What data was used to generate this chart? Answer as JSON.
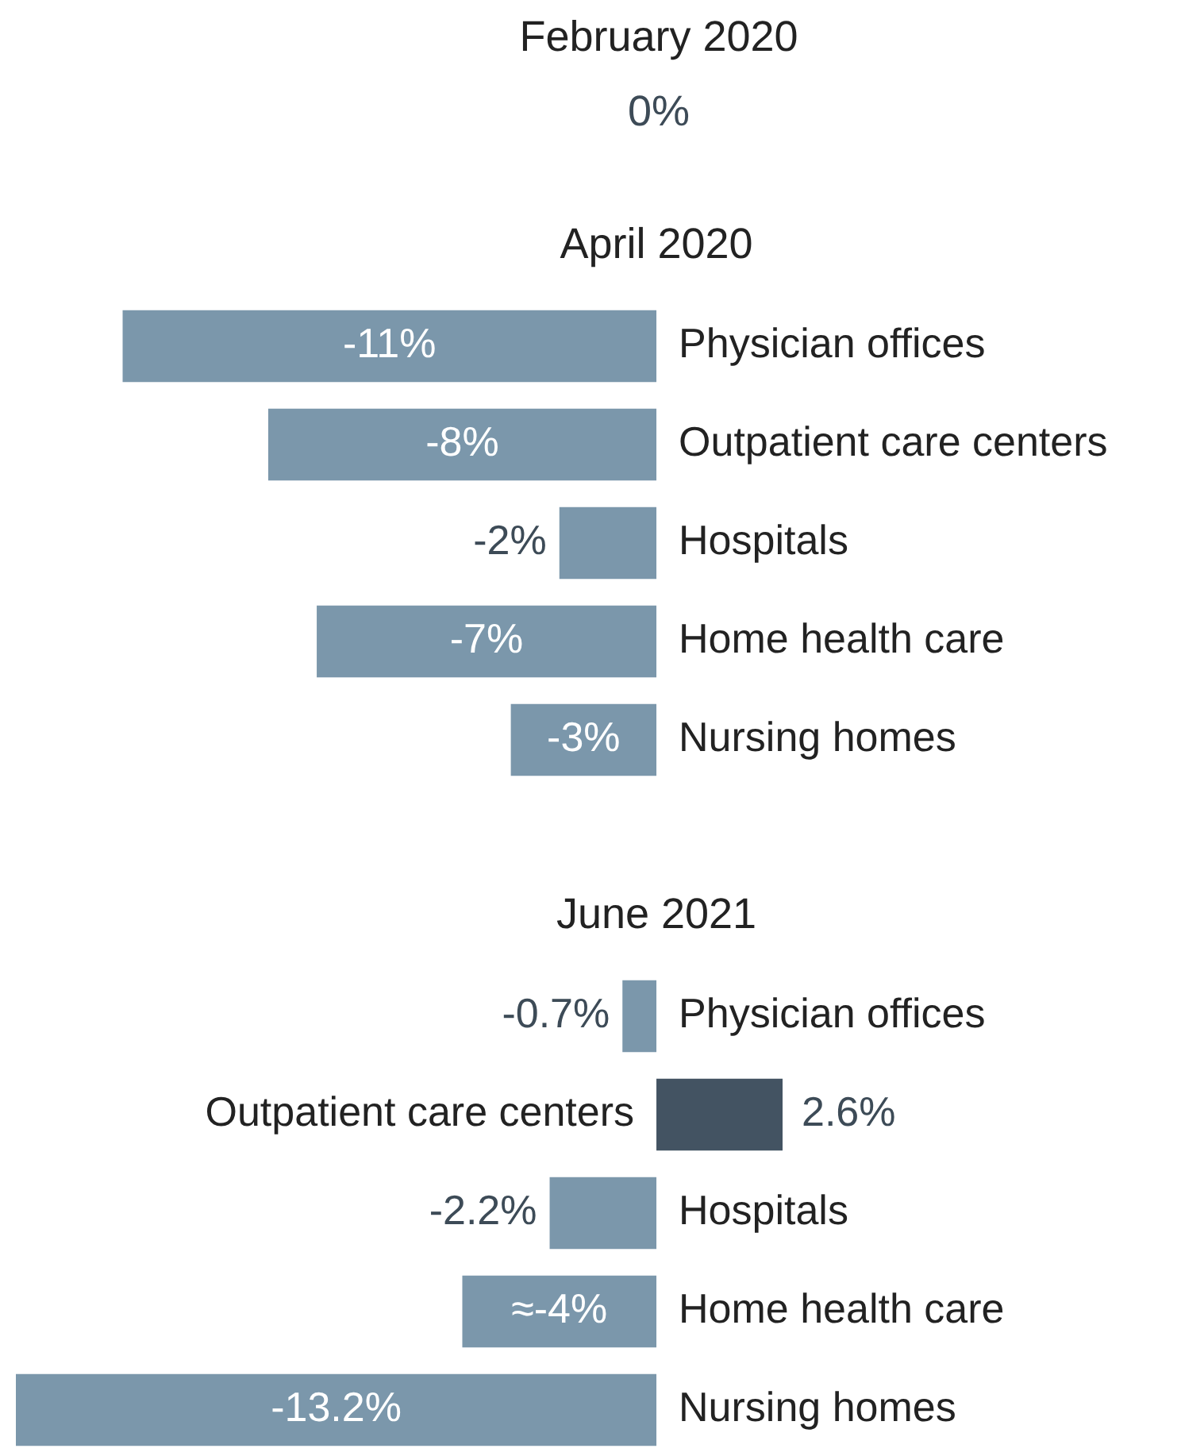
{
  "chart_data": [
    {
      "type": "other",
      "title": "February 2020",
      "annotations": [
        "0%"
      ]
    },
    {
      "type": "bar",
      "orientation": "horizontal",
      "title": "April 2020",
      "categories": [
        "Physician offices",
        "Outpatient care centers",
        "Hospitals",
        "Home health care",
        "Nursing homes"
      ],
      "values": [
        -11,
        -8,
        -2,
        -7,
        -3
      ],
      "value_labels": [
        "-11%",
        "-8%",
        "-2%",
        "-7%",
        "-3%"
      ],
      "colors": [
        "#7b97ab",
        "#7b97ab",
        "#7b97ab",
        "#7b97ab",
        "#7b97ab"
      ]
    },
    {
      "type": "bar",
      "orientation": "horizontal",
      "title": "June 2021",
      "categories": [
        "Physician offices",
        "Outpatient care centers",
        "Hospitals",
        "Home health care",
        "Nursing homes"
      ],
      "values": [
        -0.7,
        2.6,
        -2.2,
        -4,
        -13.2
      ],
      "value_labels": [
        "-0.7%",
        "2.6%",
        "-2.2%",
        "≈-4%",
        "-13.2%"
      ],
      "colors": [
        "#7b97ab",
        "#435362",
        "#7b97ab",
        "#7b97ab",
        "#7b97ab"
      ]
    }
  ]
}
